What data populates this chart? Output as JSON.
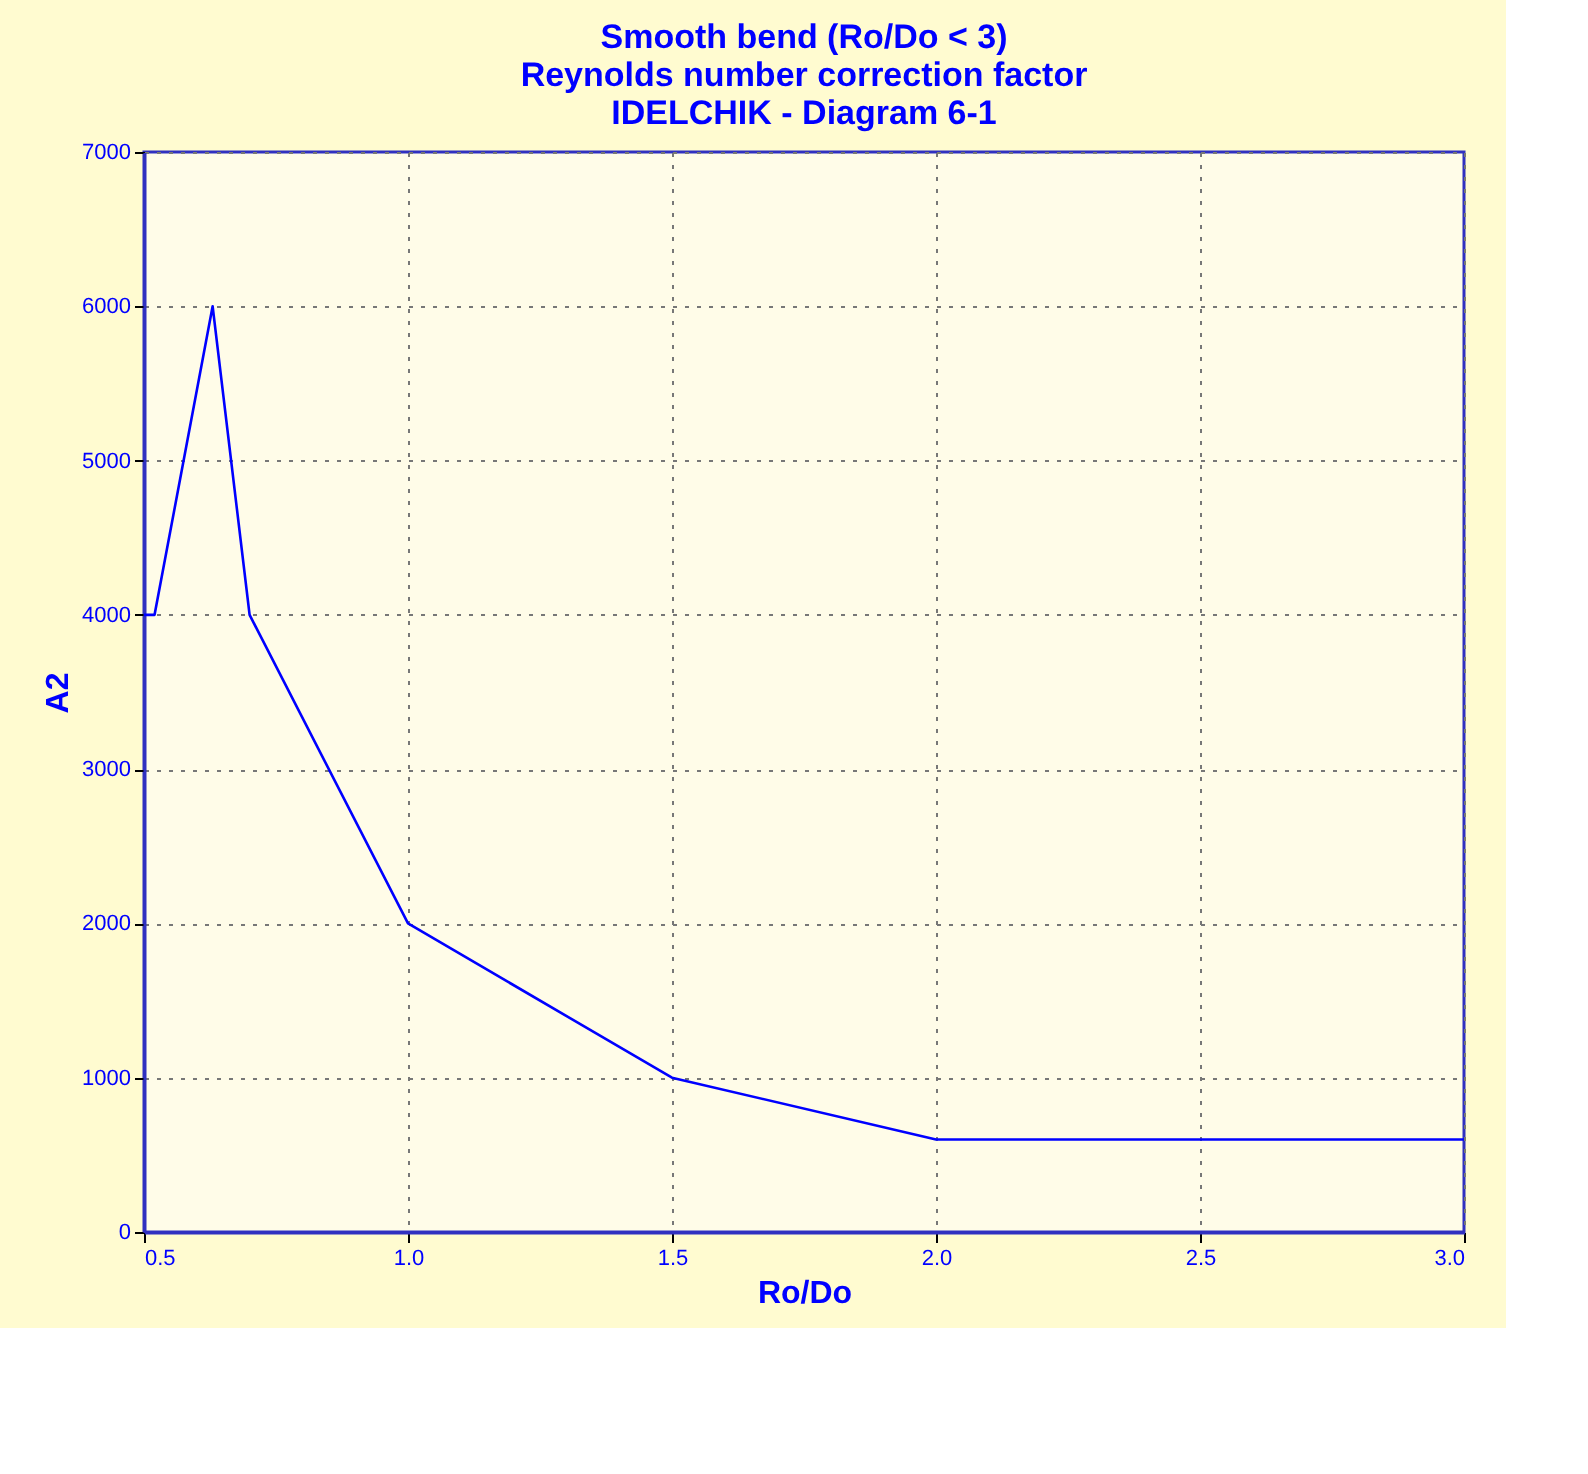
{
  "chart_data": {
    "type": "line",
    "title": [
      "Smooth bend (Ro/Do < 3)",
      "Reynolds number correction factor",
      "IDELCHIK - Diagram 6-1"
    ],
    "xlabel": "Ro/Do",
    "ylabel": "A2",
    "x": [
      0.5,
      0.52,
      0.63,
      0.7,
      1.0,
      1.5,
      2.0,
      3.0
    ],
    "series": [
      {
        "color": "#0000ff",
        "values": [
          4000,
          4000,
          6000,
          4000,
          2000,
          1000,
          600,
          600
        ]
      }
    ],
    "xlim": [
      0.5,
      3.0
    ],
    "xticks": [
      {
        "value": 0.5,
        "label": "0.5"
      },
      {
        "value": 1.0,
        "label": "1.0"
      },
      {
        "value": 1.5,
        "label": "1.5"
      },
      {
        "value": 2.0,
        "label": "2.0"
      },
      {
        "value": 2.5,
        "label": "2.5"
      },
      {
        "value": 3.0,
        "label": "3.0"
      }
    ],
    "ylim": [
      0,
      7000
    ],
    "yticks": [
      0,
      1000,
      2000,
      3000,
      4000,
      5000,
      6000,
      7000
    ],
    "grid": true,
    "marker": "none",
    "line_style": "solid"
  }
}
